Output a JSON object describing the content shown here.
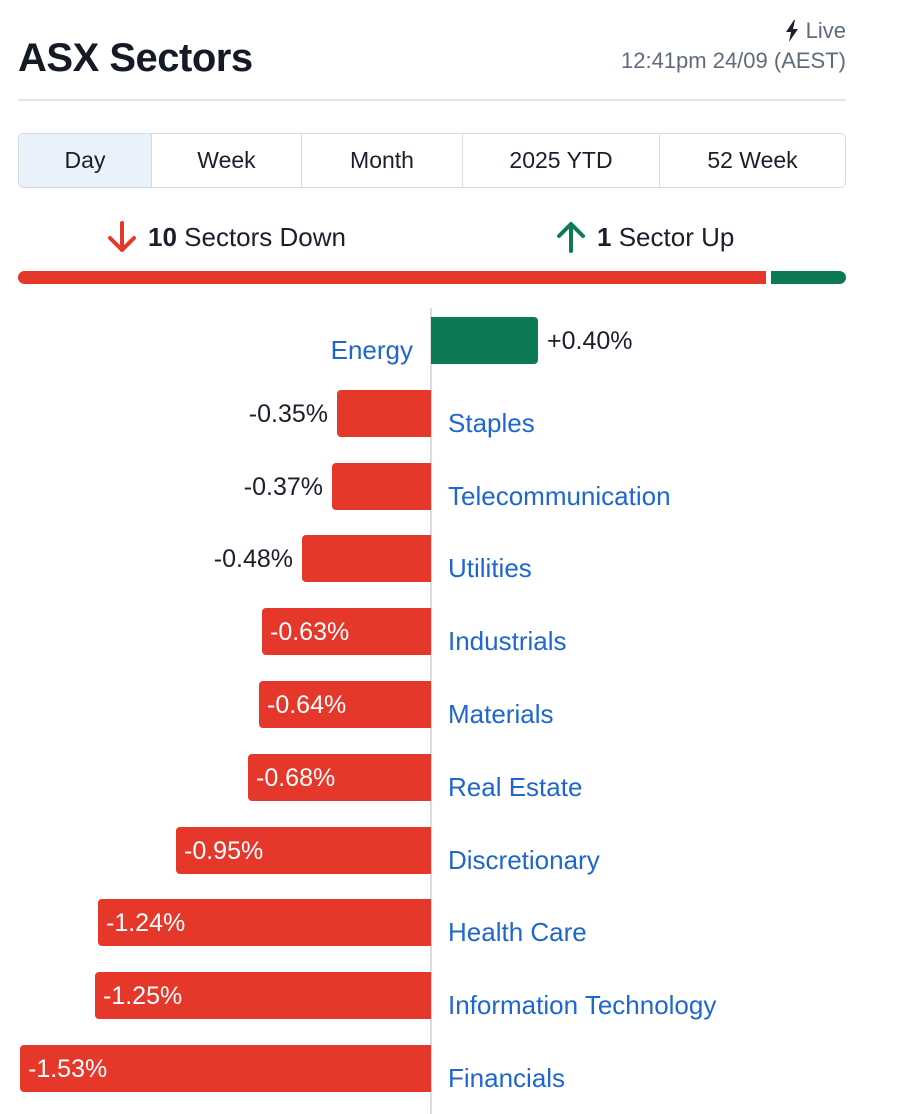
{
  "header": {
    "title": "ASX Sectors",
    "live_label": "Live",
    "timestamp": "12:41pm 24/09 (AEST)"
  },
  "tabs": [
    {
      "label": "Day",
      "active": true
    },
    {
      "label": "Week",
      "active": false
    },
    {
      "label": "Month",
      "active": false
    },
    {
      "label": "2025 YTD",
      "active": false
    },
    {
      "label": "52 Week",
      "active": false
    }
  ],
  "summary": {
    "down_count": "10",
    "down_text": "Sectors Down",
    "up_count": "1",
    "up_text": "Sector Up"
  },
  "colors": {
    "negative": "#e5382a",
    "positive": "#0c7b54",
    "link": "#1e66d0"
  },
  "icons": {
    "live": "lightning-icon",
    "down": "arrow-down-icon",
    "up": "arrow-up-icon"
  },
  "chart_data": {
    "type": "bar",
    "orientation": "horizontal",
    "categories": [
      "Energy",
      "Staples",
      "Telecommunication",
      "Utilities",
      "Industrials",
      "Materials",
      "Real Estate",
      "Discretionary",
      "Health Care",
      "Information Technology",
      "Financials"
    ],
    "values": [
      0.4,
      -0.35,
      -0.37,
      -0.48,
      -0.63,
      -0.64,
      -0.68,
      -0.95,
      -1.24,
      -1.25,
      -1.53
    ],
    "value_labels": [
      "+0.40%",
      "-0.35%",
      "-0.37%",
      "-0.48%",
      "-0.63%",
      "-0.64%",
      "-0.68%",
      "-0.95%",
      "-1.24%",
      "-1.25%",
      "-1.53%"
    ],
    "unit": "%",
    "grid": false
  }
}
